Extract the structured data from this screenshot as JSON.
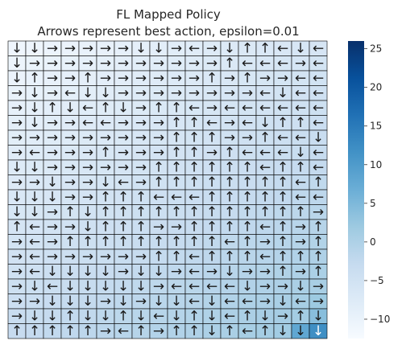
{
  "chart_data": {
    "type": "heatmap",
    "title": "FL Mapped Policy",
    "subtitle": "Arrows represent best action, epsilon=0.01",
    "xlabel": "",
    "ylabel": "",
    "grid": true,
    "colormap": "Blues",
    "colorbar": {
      "ticks": [
        25,
        20,
        15,
        10,
        5,
        0,
        -5,
        -10
      ],
      "vmin": -12.5,
      "vmax": 26
    },
    "cell_value_baseline": 0,
    "cell_values_note": "",
    "policy_arrows": [
      "↓↓→→→→→↓↓→←→↓↑↑←↓←",
      "↓→→→→→→→→→→→↑←←←→←",
      "↓↑→→↑→→→→→→↑→↑→→←←",
      "→↓→←↓↓→→→→→→→→←↓←←",
      "→↓↑↓←↑↓→↑↑←→←←←←←←",
      "→↓→→←←→→→↑↑←→←↓↑↑←",
      "→→→→→→→→→↑↑↑→→↑←←↓",
      "→←→→→↑→→→↑↑→↑←←←↓←",
      "↓↓→→→→→→↑↑↑↑↑↑←↑↑←",
      "→→↓→→↓←→↑↑↑↑↑↑↑↑←↑",
      "↓↓↓→→↑↑↑←←←↑↑↑↑↑←←",
      "↓↓→↑↓↑↑↑↑↑↑↑↑↑↑↑↑→",
      "↑←→→↓↑↑↑→→↑↑↑↑←↑→↑",
      "→←→↑↑↑↑↑↑↑↑↑←↑→↑→↑",
      "→←→→→→→→↑↑←↑↑↑←↑↑↑",
      "→←↓↓↓↓→↓↓→←→↓→→↑→↑",
      "→↓←↓↓↓↓↓→←←←←↓→→↓→",
      "→→↓↓↓→↓→↓↓←↓←←→↓←→",
      "→↓↓↑↓↓↑↓←↓↑↓←↑↓→↑↓",
      "↑↑↑↑↑→←↑→↑↑↓↑←↑↓↓↓"
    ]
  }
}
